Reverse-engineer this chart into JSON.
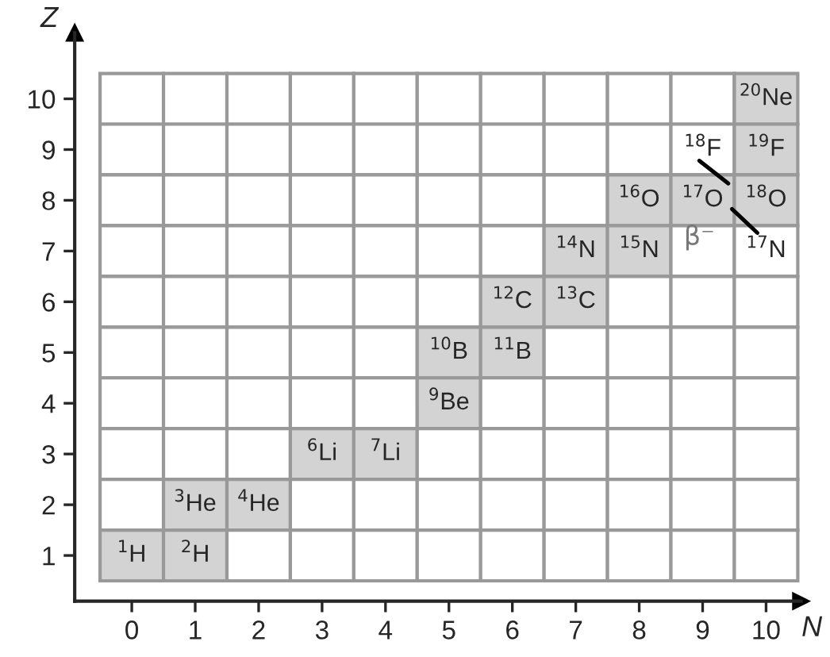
{
  "chart_data": {
    "type": "heatmap",
    "xlabel": "N",
    "ylabel": "Z",
    "categories": [
      "0",
      "1",
      "2",
      "3",
      "4",
      "5",
      "6",
      "7",
      "8",
      "9",
      "10"
    ],
    "y_categories": [
      "10",
      "9",
      "8",
      "7",
      "6",
      "5",
      "4",
      "3",
      "2",
      "1"
    ],
    "cells": [
      [
        null,
        null,
        null,
        null,
        null,
        null,
        null,
        null,
        null,
        null,
        20
      ],
      [
        null,
        null,
        null,
        null,
        null,
        null,
        null,
        null,
        null,
        18,
        19
      ],
      [
        null,
        null,
        null,
        null,
        null,
        null,
        null,
        null,
        16,
        17,
        18
      ],
      [
        null,
        null,
        null,
        null,
        null,
        null,
        null,
        14,
        15,
        null,
        17
      ],
      [
        null,
        null,
        null,
        null,
        null,
        null,
        12,
        13,
        null,
        null,
        null
      ],
      [
        null,
        null,
        null,
        null,
        null,
        10,
        11,
        null,
        null,
        null,
        null
      ],
      [
        null,
        null,
        null,
        null,
        null,
        9,
        null,
        null,
        null,
        null,
        null
      ],
      [
        null,
        null,
        null,
        6,
        7,
        null,
        null,
        null,
        null,
        null,
        null
      ],
      [
        null,
        3,
        4,
        null,
        null,
        null,
        null,
        null,
        null,
        null,
        null
      ],
      [
        1,
        2,
        null,
        null,
        null,
        null,
        null,
        null,
        null,
        null,
        null
      ]
    ],
    "cell_labels": [
      [
        null,
        null,
        null,
        null,
        null,
        null,
        null,
        null,
        null,
        null,
        "$^{20}$Ne"
      ],
      [
        null,
        null,
        null,
        null,
        null,
        null,
        null,
        null,
        null,
        "$^{18}$F",
        "$^{19}$F"
      ],
      [
        null,
        null,
        null,
        null,
        null,
        null,
        null,
        null,
        "$^{16}$O",
        "$^{17}$O",
        "$^{18}$O"
      ],
      [
        null,
        null,
        null,
        null,
        null,
        null,
        null,
        "$^{14}$N",
        "$^{15}$N",
        null,
        "$^{17}$N"
      ],
      [
        null,
        null,
        null,
        null,
        null,
        null,
        "$^{12}$C",
        "$^{13}$C",
        null,
        null,
        null
      ],
      [
        null,
        null,
        null,
        null,
        null,
        "$^{10}$B",
        "$^{11}$B",
        null,
        null,
        null,
        null
      ],
      [
        null,
        null,
        null,
        null,
        null,
        "$^{9}$Be",
        null,
        null,
        null,
        null,
        null
      ],
      [
        null,
        null,
        null,
        "$^{6}$Li",
        "$^{7}$Li",
        null,
        null,
        null,
        null,
        null,
        null
      ],
      [
        null,
        "$^{3}$He",
        "$^{4}$He",
        null,
        null,
        null,
        null,
        null,
        null,
        null,
        null
      ],
      [
        "$^{1}$H",
        "$^{2}$H",
        null,
        null,
        null,
        null,
        null,
        null,
        null,
        null,
        null
      ]
    ],
    "colors": [
      [
        null,
        null,
        null,
        null,
        null,
        null,
        null,
        null,
        null,
        null,
        "#d3d3d3"
      ],
      [
        null,
        null,
        null,
        null,
        null,
        null,
        null,
        null,
        null,
        "#ffffff",
        "#d3d3d3"
      ],
      [
        null,
        null,
        null,
        null,
        null,
        null,
        null,
        null,
        "#d3d3d3",
        "#d3d3d3",
        "#d3d3d3"
      ],
      [
        null,
        null,
        null,
        null,
        null,
        null,
        null,
        "#d3d3d3",
        "#d3d3d3",
        null,
        "#ffffff"
      ],
      [
        null,
        null,
        null,
        null,
        null,
        null,
        "#d3d3d3",
        "#d3d3d3",
        null,
        null,
        null
      ],
      [
        null,
        null,
        null,
        null,
        null,
        "#d3d3d3",
        "#d3d3d3",
        null,
        null,
        null,
        null
      ],
      [
        null,
        null,
        null,
        null,
        null,
        "#d3d3d3",
        null,
        null,
        null,
        null,
        null
      ],
      [
        null,
        null,
        null,
        "#d3d3d3",
        "#d3d3d3",
        null,
        null,
        null,
        null,
        null,
        null
      ],
      [
        null,
        "#d3d3d3",
        "#d3d3d3",
        null,
        null,
        null,
        null,
        null,
        null,
        null,
        null
      ],
      [
        "#d3d3d3",
        "#d3d3d3",
        null,
        null,
        null,
        null,
        null,
        null,
        null,
        null,
        null
      ]
    ],
    "annotations": [
      "β⁻"
    ]
  }
}
